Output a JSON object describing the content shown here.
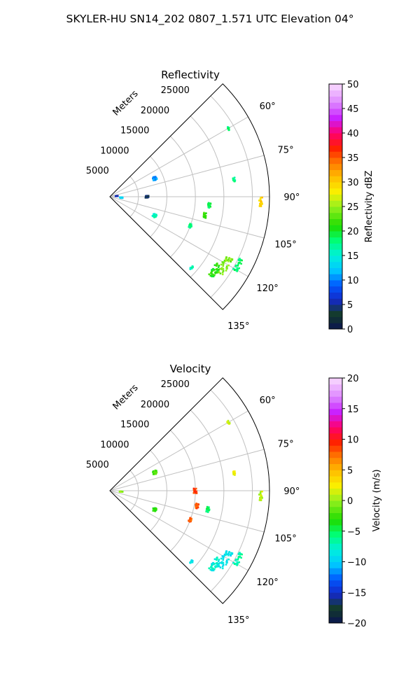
{
  "suptitle": "SKYLER-HU  SN14_202  0807_1.571 UTC Elevation 04°",
  "range_unit_label": "Meters",
  "chart_data": [
    {
      "type": "polar-sector",
      "title": "Reflectivity",
      "theta_range_deg": [
        45,
        135
      ],
      "r_max": 28000,
      "r_ticks": [
        5000,
        10000,
        15000,
        20000,
        25000
      ],
      "theta_ticks": [
        60,
        75,
        90,
        105,
        120,
        135
      ],
      "theta_tick_labels": [
        "60°",
        "75°",
        "90°",
        "105°",
        "120°",
        "135°"
      ],
      "grid": true,
      "colorbar": {
        "label": "Reflectivity dBZ",
        "range": [
          0,
          50
        ],
        "ticks": [
          0,
          5,
          10,
          15,
          20,
          25,
          30,
          35,
          40,
          45,
          50
        ]
      },
      "echo_clusters": [
        {
          "theta": 121,
          "r": 23500,
          "value": 24,
          "size": 1100
        },
        {
          "theta": 125,
          "r": 22500,
          "value": 21,
          "size": 900
        },
        {
          "theta": 118,
          "r": 25500,
          "value": 18,
          "size": 700
        },
        {
          "theta": 92,
          "r": 26500,
          "value": 30,
          "size": 500
        },
        {
          "theta": 101,
          "r": 17000,
          "value": 22,
          "size": 450
        },
        {
          "theta": 95,
          "r": 17500,
          "value": 19,
          "size": 400
        },
        {
          "theta": 110,
          "r": 15000,
          "value": 18,
          "size": 380
        },
        {
          "theta": 68,
          "r": 8500,
          "value": 11,
          "size": 600
        },
        {
          "theta": 113,
          "r": 8500,
          "value": 16,
          "size": 550
        },
        {
          "theta": 95,
          "r": 2000,
          "value": 13,
          "size": 450
        },
        {
          "theta": 85,
          "r": 1200,
          "value": 6,
          "size": 350
        },
        {
          "theta": 90,
          "r": 6500,
          "value": 4,
          "size": 500
        },
        {
          "theta": 82,
          "r": 22000,
          "value": 17,
          "size": 300
        },
        {
          "theta": 60,
          "r": 24000,
          "value": 18,
          "size": 250
        },
        {
          "theta": 131,
          "r": 19000,
          "value": 16,
          "size": 300
        }
      ]
    },
    {
      "type": "polar-sector",
      "title": "Velocity",
      "theta_range_deg": [
        45,
        135
      ],
      "r_max": 28000,
      "r_ticks": [
        5000,
        10000,
        15000,
        20000,
        25000
      ],
      "theta_ticks": [
        60,
        75,
        90,
        105,
        120,
        135
      ],
      "theta_tick_labels": [
        "60°",
        "75°",
        "90°",
        "105°",
        "120°",
        "135°"
      ],
      "grid": true,
      "colorbar": {
        "label": "Velocity (m/s)",
        "range": [
          -20,
          20
        ],
        "ticks": [
          -20,
          -15,
          -10,
          -5,
          0,
          5,
          10,
          15,
          20
        ]
      },
      "echo_clusters": [
        {
          "theta": 121,
          "r": 23500,
          "value": -9,
          "size": 1100
        },
        {
          "theta": 125,
          "r": 22500,
          "value": -8,
          "size": 900
        },
        {
          "theta": 118,
          "r": 25500,
          "value": -7,
          "size": 700
        },
        {
          "theta": 92,
          "r": 26500,
          "value": 1,
          "size": 500
        },
        {
          "theta": 90,
          "r": 15000,
          "value": 9,
          "size": 500
        },
        {
          "theta": 100,
          "r": 15500,
          "value": 8,
          "size": 450
        },
        {
          "theta": 101,
          "r": 17500,
          "value": -5,
          "size": 450
        },
        {
          "theta": 110,
          "r": 15000,
          "value": 8,
          "size": 380
        },
        {
          "theta": 68,
          "r": 8500,
          "value": -2,
          "size": 600
        },
        {
          "theta": 113,
          "r": 8500,
          "value": -3,
          "size": 550
        },
        {
          "theta": 95,
          "r": 2000,
          "value": 0,
          "size": 450
        },
        {
          "theta": 82,
          "r": 22000,
          "value": 2,
          "size": 300
        },
        {
          "theta": 60,
          "r": 24000,
          "value": 1,
          "size": 250
        },
        {
          "theta": 131,
          "r": 19000,
          "value": -9,
          "size": 300
        }
      ]
    }
  ]
}
